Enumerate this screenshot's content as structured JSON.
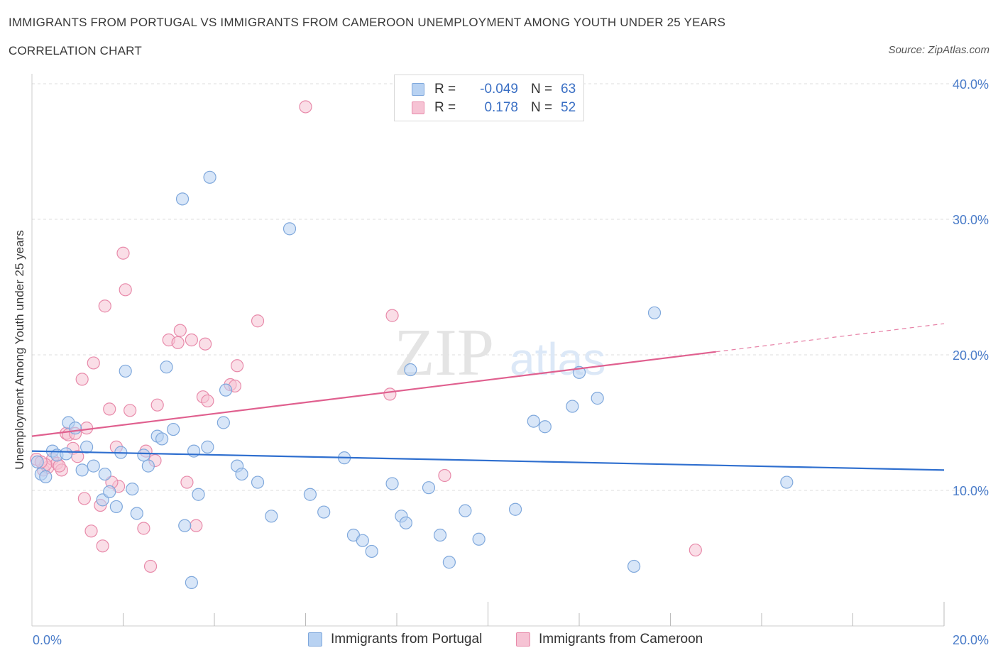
{
  "header": {
    "title": "IMMIGRANTS FROM PORTUGAL VS IMMIGRANTS FROM CAMEROON UNEMPLOYMENT AMONG YOUTH UNDER 25 YEARS",
    "subtitle": "CORRELATION CHART",
    "source": "Source: ZipAtlas.com"
  },
  "legend": {
    "rows": [
      {
        "r_label": "R =",
        "r_value": "-0.049",
        "n_label": "N =",
        "n_value": "63"
      },
      {
        "r_label": "R =",
        "r_value": "0.178",
        "n_label": "N =",
        "n_value": "52"
      }
    ]
  },
  "bottom_legend": {
    "portugal": "Immigrants from Portugal",
    "cameroon": "Immigrants from Cameroon"
  },
  "watermark": {
    "zip": "ZIP",
    "atlas": "atlas"
  },
  "colors": {
    "portugal_fill": "#b8d2f2",
    "portugal_stroke": "#7fa8dc",
    "portugal_line": "#2f6fcf",
    "cameroon_fill": "#f6c3d4",
    "cameroon_stroke": "#e88aaa",
    "cameroon_line": "#e0608f",
    "tick_text": "#4a7cc9",
    "grid": "#dcdcdc"
  },
  "chart_data": {
    "type": "scatter",
    "xlabel": "",
    "ylabel": "Unemployment Among Youth under 25 years",
    "xlim": [
      0,
      20
    ],
    "ylim": [
      0,
      40
    ],
    "x_tick_labels": [
      {
        "value": 0,
        "label": "0.0%"
      },
      {
        "value": 20,
        "label": "20.0%"
      }
    ],
    "y_tick_labels": [
      {
        "value": 10,
        "label": "10.0%"
      },
      {
        "value": 20,
        "label": "20.0%"
      },
      {
        "value": 30,
        "label": "30.0%"
      },
      {
        "value": 40,
        "label": "40.0%"
      }
    ],
    "grid": true,
    "series": [
      {
        "name": "Immigrants from Portugal",
        "trend": {
          "x0": 0,
          "y0": 12.9,
          "x1": 20,
          "y1": 11.5,
          "dashed_from": null
        },
        "points": [
          [
            0.2,
            11.2
          ],
          [
            0.3,
            11.0
          ],
          [
            0.45,
            12.9
          ],
          [
            0.55,
            12.6
          ],
          [
            0.75,
            12.7
          ],
          [
            0.8,
            15.0
          ],
          [
            0.95,
            14.6
          ],
          [
            1.1,
            11.5
          ],
          [
            1.2,
            13.2
          ],
          [
            1.35,
            11.8
          ],
          [
            1.55,
            9.3
          ],
          [
            1.6,
            11.2
          ],
          [
            1.7,
            9.9
          ],
          [
            1.85,
            8.8
          ],
          [
            1.95,
            12.8
          ],
          [
            2.05,
            18.8
          ],
          [
            2.2,
            10.1
          ],
          [
            2.3,
            8.3
          ],
          [
            2.45,
            12.6
          ],
          [
            2.55,
            11.8
          ],
          [
            2.75,
            14.0
          ],
          [
            2.85,
            13.8
          ],
          [
            2.95,
            19.1
          ],
          [
            3.1,
            14.5
          ],
          [
            3.3,
            31.5
          ],
          [
            3.35,
            7.4
          ],
          [
            3.5,
            3.2
          ],
          [
            3.55,
            12.9
          ],
          [
            3.65,
            9.7
          ],
          [
            3.85,
            13.2
          ],
          [
            3.9,
            33.1
          ],
          [
            4.2,
            15.0
          ],
          [
            4.25,
            17.4
          ],
          [
            4.5,
            11.8
          ],
          [
            4.6,
            11.2
          ],
          [
            4.95,
            10.6
          ],
          [
            5.25,
            8.1
          ],
          [
            5.65,
            29.3
          ],
          [
            6.1,
            9.7
          ],
          [
            6.4,
            8.4
          ],
          [
            6.85,
            12.4
          ],
          [
            7.05,
            6.7
          ],
          [
            7.25,
            6.3
          ],
          [
            7.45,
            5.5
          ],
          [
            7.9,
            10.5
          ],
          [
            8.1,
            8.1
          ],
          [
            8.2,
            7.6
          ],
          [
            8.3,
            18.9
          ],
          [
            8.7,
            10.2
          ],
          [
            8.95,
            6.7
          ],
          [
            9.15,
            4.7
          ],
          [
            9.5,
            8.5
          ],
          [
            9.8,
            6.4
          ],
          [
            10.6,
            8.6
          ],
          [
            11.0,
            15.1
          ],
          [
            11.25,
            14.7
          ],
          [
            11.85,
            16.2
          ],
          [
            12.0,
            18.7
          ],
          [
            12.4,
            16.8
          ],
          [
            13.2,
            4.4
          ],
          [
            13.65,
            23.1
          ],
          [
            16.55,
            10.6
          ],
          [
            0.12,
            12.1
          ]
        ]
      },
      {
        "name": "Immigrants from Cameroon",
        "trend": {
          "x0": 0,
          "y0": 14.0,
          "x1": 20,
          "y1": 22.3,
          "dashed_from": 15.0
        },
        "points": [
          [
            0.1,
            12.3
          ],
          [
            0.25,
            11.5
          ],
          [
            0.35,
            11.7
          ],
          [
            0.45,
            12.3
          ],
          [
            0.55,
            12.0
          ],
          [
            0.65,
            11.5
          ],
          [
            0.75,
            14.2
          ],
          [
            0.8,
            14.1
          ],
          [
            0.9,
            13.1
          ],
          [
            0.95,
            14.2
          ],
          [
            1.0,
            12.5
          ],
          [
            1.1,
            18.2
          ],
          [
            1.15,
            9.4
          ],
          [
            1.2,
            14.6
          ],
          [
            1.3,
            7.0
          ],
          [
            1.35,
            19.4
          ],
          [
            1.5,
            8.9
          ],
          [
            1.55,
            5.9
          ],
          [
            1.6,
            23.6
          ],
          [
            1.7,
            16.0
          ],
          [
            1.85,
            13.2
          ],
          [
            1.9,
            10.3
          ],
          [
            2.0,
            27.5
          ],
          [
            2.05,
            24.8
          ],
          [
            2.15,
            15.9
          ],
          [
            2.45,
            7.2
          ],
          [
            2.5,
            12.9
          ],
          [
            2.6,
            4.4
          ],
          [
            2.7,
            12.2
          ],
          [
            2.75,
            16.3
          ],
          [
            3.0,
            21.1
          ],
          [
            3.2,
            20.9
          ],
          [
            3.25,
            21.8
          ],
          [
            3.4,
            10.6
          ],
          [
            3.5,
            21.1
          ],
          [
            3.6,
            7.4
          ],
          [
            3.75,
            16.9
          ],
          [
            3.8,
            20.8
          ],
          [
            3.85,
            16.6
          ],
          [
            4.35,
            17.8
          ],
          [
            4.45,
            17.7
          ],
          [
            4.5,
            19.2
          ],
          [
            4.95,
            22.5
          ],
          [
            6.0,
            38.3
          ],
          [
            7.85,
            17.1
          ],
          [
            7.9,
            22.9
          ],
          [
            9.05,
            11.1
          ],
          [
            14.55,
            5.6
          ],
          [
            0.3,
            11.9
          ],
          [
            1.75,
            10.6
          ],
          [
            0.6,
            11.8
          ],
          [
            0.2,
            12.1
          ]
        ]
      }
    ]
  }
}
